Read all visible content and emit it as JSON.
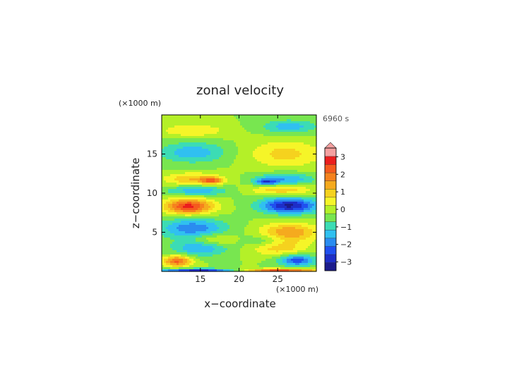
{
  "chart_data": {
    "type": "heatmap",
    "title": "zonal velocity",
    "time_label": "6960 s",
    "xlabel": "x−coordinate",
    "ylabel": "z−coordinate",
    "x_unit": "(×1000 m)",
    "y_unit": "(×1000 m)",
    "xlim": [
      10,
      30
    ],
    "ylim": [
      0,
      20
    ],
    "x_ticks": [
      15,
      20,
      25
    ],
    "y_ticks": [
      5,
      10,
      15
    ],
    "colorbar": {
      "range": [
        -3.5,
        3.5
      ],
      "step": 0.5,
      "extend": "max",
      "tick_values": [
        3,
        2,
        1,
        0,
        -1,
        -2,
        -3
      ],
      "tick_labels": [
        "3",
        "2",
        "1",
        "0",
        "−1",
        "−2",
        "−3"
      ],
      "colors": [
        "#1c1c8c",
        "#1e2ec8",
        "#2050f0",
        "#2a8cf0",
        "#30c0f0",
        "#3cdcb4",
        "#78e650",
        "#b4f028",
        "#f5f528",
        "#f5d21e",
        "#f5aa1e",
        "#f5821e",
        "#f55a1e",
        "#eb1e1e",
        "#f5a0a0"
      ]
    },
    "field_features": [
      {
        "x": 13.5,
        "z": 8.3,
        "value": 3.2,
        "sx": 2.2,
        "sz": 0.7
      },
      {
        "x": 26.5,
        "z": 8.4,
        "value": -3.1,
        "sx": 2.6,
        "sz": 0.7
      },
      {
        "x": 12.0,
        "z": 1.3,
        "value": 2.6,
        "sx": 1.3,
        "sz": 0.5
      },
      {
        "x": 27.5,
        "z": 1.4,
        "value": -2.3,
        "sx": 1.6,
        "sz": 0.5
      },
      {
        "x": 14.0,
        "z": 15.2,
        "value": -1.4,
        "sx": 3.0,
        "sz": 0.9
      },
      {
        "x": 26.0,
        "z": 15.0,
        "value": 1.2,
        "sx": 3.4,
        "sz": 1.2
      },
      {
        "x": 14.0,
        "z": 11.8,
        "value": 1.5,
        "sx": 2.6,
        "sz": 0.55
      },
      {
        "x": 26.0,
        "z": 11.8,
        "value": -1.5,
        "sx": 2.6,
        "sz": 0.55
      },
      {
        "x": 16.5,
        "z": 11.6,
        "value": 2.1,
        "sx": 1.0,
        "sz": 0.3
      },
      {
        "x": 23.5,
        "z": 11.4,
        "value": -2.0,
        "sx": 1.0,
        "sz": 0.3
      },
      {
        "x": 14.5,
        "z": 10.3,
        "value": -1.4,
        "sx": 2.8,
        "sz": 0.45
      },
      {
        "x": 25.5,
        "z": 10.4,
        "value": 1.4,
        "sx": 2.8,
        "sz": 0.45
      },
      {
        "x": 14.0,
        "z": 5.5,
        "value": -1.9,
        "sx": 3.0,
        "sz": 0.9
      },
      {
        "x": 26.5,
        "z": 5.0,
        "value": 2.0,
        "sx": 2.6,
        "sz": 0.8
      },
      {
        "x": 16.5,
        "z": 4.0,
        "value": 1.0,
        "sx": 2.0,
        "sz": 0.6
      },
      {
        "x": 23.5,
        "z": 3.8,
        "value": -1.0,
        "sx": 2.0,
        "sz": 0.6
      },
      {
        "x": 15.0,
        "z": 3.0,
        "value": -1.6,
        "sx": 2.5,
        "sz": 0.7
      },
      {
        "x": 25.0,
        "z": 3.1,
        "value": 1.5,
        "sx": 2.5,
        "sz": 0.7
      },
      {
        "x": 14.0,
        "z": 18.0,
        "value": 1.0,
        "sx": 3.0,
        "sz": 0.6
      },
      {
        "x": 26.5,
        "z": 18.5,
        "value": -1.3,
        "sx": 2.5,
        "sz": 0.6
      },
      {
        "x": 15.0,
        "z": 0.15,
        "value": -2.8,
        "sx": 4.0,
        "sz": 0.15
      },
      {
        "x": 25.0,
        "z": 0.15,
        "value": 2.8,
        "sx": 4.0,
        "sz": 0.15
      }
    ]
  }
}
